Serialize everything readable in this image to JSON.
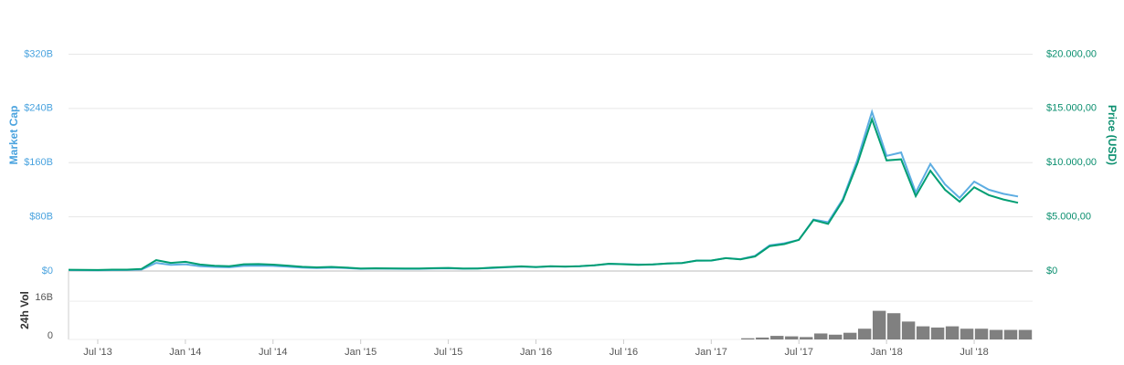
{
  "chart_data": [
    {
      "type": "line",
      "y_label": "Market Cap",
      "y2_label": "Price (USD)",
      "x": [
        "2013-05",
        "2013-06",
        "2013-07",
        "2013-08",
        "2013-09",
        "2013-10",
        "2013-11",
        "2013-12",
        "2014-01",
        "2014-02",
        "2014-03",
        "2014-04",
        "2014-05",
        "2014-06",
        "2014-07",
        "2014-08",
        "2014-09",
        "2014-10",
        "2014-11",
        "2014-12",
        "2015-01",
        "2015-02",
        "2015-03",
        "2015-04",
        "2015-05",
        "2015-06",
        "2015-07",
        "2015-08",
        "2015-09",
        "2015-10",
        "2015-11",
        "2015-12",
        "2016-01",
        "2016-02",
        "2016-03",
        "2016-04",
        "2016-05",
        "2016-06",
        "2016-07",
        "2016-08",
        "2016-09",
        "2016-10",
        "2016-11",
        "2016-12",
        "2017-01",
        "2017-02",
        "2017-03",
        "2017-04",
        "2017-05",
        "2017-06",
        "2017-07",
        "2017-08",
        "2017-09",
        "2017-10",
        "2017-11",
        "2017-12",
        "2018-01",
        "2018-02",
        "2018-03",
        "2018-04",
        "2018-05",
        "2018-06",
        "2018-07",
        "2018-08",
        "2018-09",
        "2018-10"
      ],
      "xlim": [
        "2013-05",
        "2018-11"
      ],
      "ylim": [
        0,
        330
      ],
      "yticks": [
        {
          "value": 0,
          "label": "$0"
        },
        {
          "value": 80,
          "label": "$80B"
        },
        {
          "value": 160,
          "label": "$160B"
        },
        {
          "value": 240,
          "label": "$240B"
        },
        {
          "value": 320,
          "label": "$320B"
        }
      ],
      "y2lim": [
        0,
        20625
      ],
      "y2ticks": [
        {
          "value": 0,
          "label": "$0"
        },
        {
          "value": 5000,
          "label": "$5.000,00"
        },
        {
          "value": 10000,
          "label": "$10.000,00"
        },
        {
          "value": 15000,
          "label": "$15.000,00"
        },
        {
          "value": 20000,
          "label": "$20.000,00"
        }
      ],
      "grid": true,
      "series": [
        {
          "name": "Market Cap",
          "color": "#5dade2",
          "values": [
            1.3,
            1.2,
            1.1,
            1.4,
            1.5,
            2.2,
            12,
            9,
            10,
            7,
            6,
            5.5,
            7.5,
            8,
            7.5,
            6.5,
            5,
            4.5,
            5,
            4.3,
            3.2,
            3.5,
            3.4,
            3.2,
            3.3,
            3.6,
            4,
            3.4,
            3.6,
            4.3,
            5.5,
            6.5,
            5.7,
            6.7,
            6.3,
            7,
            8.5,
            10.5,
            10.2,
            9.5,
            9.6,
            11,
            11.9,
            15.5,
            15.3,
            19,
            17.5,
            22.5,
            38,
            41,
            46,
            76,
            72,
            106,
            164,
            235,
            170,
            175,
            116,
            158,
            128,
            108,
            132,
            120,
            114,
            110
          ]
        },
        {
          "name": "Price (USD)",
          "color": "#009e73",
          "axis": "y2",
          "values": [
            115,
            108,
            95,
            125,
            130,
            190,
            1000,
            750,
            850,
            600,
            480,
            440,
            620,
            640,
            590,
            500,
            390,
            340,
            380,
            320,
            230,
            255,
            245,
            230,
            235,
            260,
            285,
            230,
            235,
            310,
            370,
            430,
            370,
            435,
            415,
            450,
            530,
            670,
            625,
            575,
            610,
            700,
            745,
            960,
            965,
            1190,
            1080,
            1350,
            2300,
            2480,
            2870,
            4700,
            4340,
            6470,
            9900,
            14000,
            10200,
            10300,
            6900,
            9250,
            7500,
            6400,
            7730,
            7000,
            6600,
            6300
          ]
        }
      ]
    },
    {
      "type": "bar",
      "y_label": "24h Vol",
      "color": "#808080",
      "x": [
        "2017-03",
        "2017-04",
        "2017-05",
        "2017-06",
        "2017-07",
        "2017-08",
        "2017-09",
        "2017-10",
        "2017-11",
        "2017-12",
        "2018-01",
        "2018-02",
        "2018-03",
        "2018-04",
        "2018-05",
        "2018-06",
        "2018-07",
        "2018-08",
        "2018-09",
        "2018-10"
      ],
      "values": [
        0.5,
        0.8,
        1.5,
        1.3,
        1,
        2.5,
        2,
        2.8,
        4.5,
        12,
        11,
        7.5,
        5.5,
        5,
        5.5,
        4.5,
        4.5,
        4,
        4,
        4
      ],
      "xlim": [
        "2013-05",
        "2018-11"
      ],
      "xticks": [
        {
          "value": "2013-07",
          "label": "Jul '13"
        },
        {
          "value": "2014-01",
          "label": "Jan '14"
        },
        {
          "value": "2014-07",
          "label": "Jul '14"
        },
        {
          "value": "2015-01",
          "label": "Jan '15"
        },
        {
          "value": "2015-07",
          "label": "Jul '15"
        },
        {
          "value": "2016-01",
          "label": "Jan '16"
        },
        {
          "value": "2016-07",
          "label": "Jul '16"
        },
        {
          "value": "2017-01",
          "label": "Jan '17"
        },
        {
          "value": "2017-07",
          "label": "Jul '17"
        },
        {
          "value": "2018-01",
          "label": "Jan '18"
        },
        {
          "value": "2018-07",
          "label": "Jul '18"
        }
      ],
      "ylim": [
        0,
        26
      ],
      "yticks": [
        0,
        {
          "value": 16,
          "label": "16B"
        }
      ]
    }
  ]
}
